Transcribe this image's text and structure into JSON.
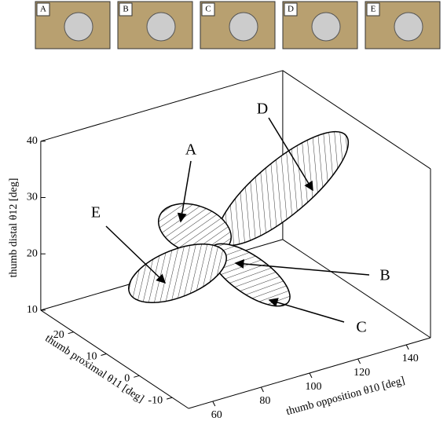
{
  "panels": [
    "A",
    "B",
    "C",
    "D",
    "E"
  ],
  "chart_data": {
    "type": "ellipsoid3d",
    "xlabel": "thumb opposition θ10 [deg]",
    "ylabel": "thumb proximal θ11 [deg]",
    "zlabel": "thumb distal θ12 [deg]",
    "xlim": [
      50,
      150
    ],
    "xticks": [
      60,
      80,
      100,
      120,
      140
    ],
    "ylim": [
      -15,
      30
    ],
    "yticks": [
      -10,
      0,
      10,
      20
    ],
    "zlim": [
      10,
      40
    ],
    "zticks": [
      10,
      20,
      30,
      40
    ],
    "annotations": [
      "A",
      "B",
      "C",
      "D",
      "E"
    ]
  }
}
